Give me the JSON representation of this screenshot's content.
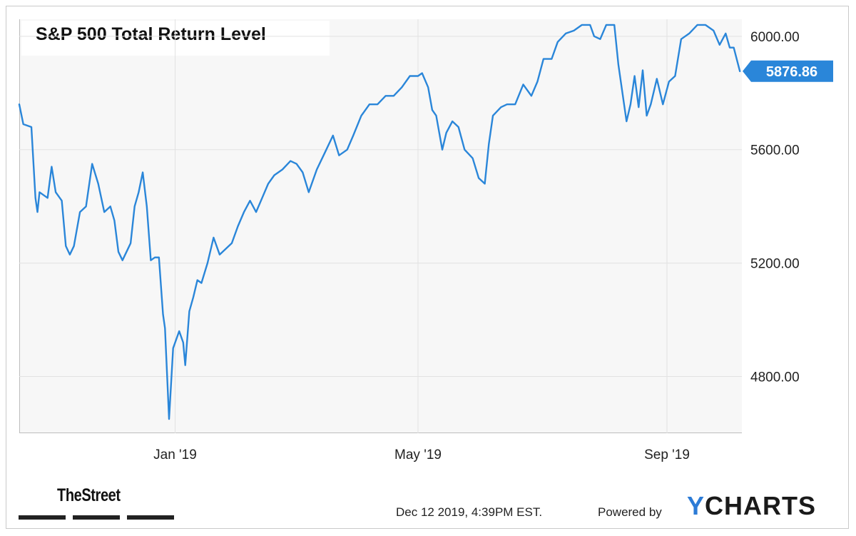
{
  "chart_data": {
    "type": "line",
    "title": "S&P 500 Total Return Level",
    "xlabel": "",
    "ylabel": "",
    "x_range": [
      "2018-10-16",
      "2019-10-08"
    ],
    "x_ticks": [
      {
        "date": "2019-01-01",
        "label": "Jan '19"
      },
      {
        "date": "2019-05-01",
        "label": "May '19"
      },
      {
        "date": "2019-09-01",
        "label": "Sep '19"
      }
    ],
    "ylim": [
      4600,
      6060
    ],
    "y_ticks": [
      {
        "value": 4800,
        "label": "4800.00"
      },
      {
        "value": 5200,
        "label": "5200.00"
      },
      {
        "value": 5600,
        "label": "5600.00"
      },
      {
        "value": 6000,
        "label": "6000.00"
      }
    ],
    "grid": true,
    "current_value": {
      "value": 5876.86,
      "label": "5876.86",
      "color": "#2a86d9"
    },
    "series": [
      {
        "color": "#2a86d9",
        "points": [
          [
            "2018-10-16",
            5760
          ],
          [
            "2018-10-18",
            5690
          ],
          [
            "2018-10-22",
            5680
          ],
          [
            "2018-10-24",
            5430
          ],
          [
            "2018-10-25",
            5380
          ],
          [
            "2018-10-26",
            5450
          ],
          [
            "2018-10-30",
            5430
          ],
          [
            "2018-11-01",
            5540
          ],
          [
            "2018-11-03",
            5450
          ],
          [
            "2018-11-06",
            5420
          ],
          [
            "2018-11-08",
            5260
          ],
          [
            "2018-11-10",
            5230
          ],
          [
            "2018-11-12",
            5260
          ],
          [
            "2018-11-15",
            5380
          ],
          [
            "2018-11-18",
            5400
          ],
          [
            "2018-11-21",
            5550
          ],
          [
            "2018-11-24",
            5480
          ],
          [
            "2018-11-27",
            5380
          ],
          [
            "2018-11-30",
            5400
          ],
          [
            "2018-12-02",
            5350
          ],
          [
            "2018-12-04",
            5240
          ],
          [
            "2018-12-06",
            5210
          ],
          [
            "2018-12-10",
            5270
          ],
          [
            "2018-12-12",
            5400
          ],
          [
            "2018-12-14",
            5450
          ],
          [
            "2018-12-16",
            5520
          ],
          [
            "2018-12-18",
            5400
          ],
          [
            "2018-12-20",
            5210
          ],
          [
            "2018-12-22",
            5220
          ],
          [
            "2018-12-24",
            5220
          ],
          [
            "2018-12-26",
            5020
          ],
          [
            "2018-12-27",
            4970
          ],
          [
            "2018-12-29",
            4650
          ],
          [
            "2018-12-31",
            4900
          ],
          [
            "2019-01-03",
            4960
          ],
          [
            "2019-01-05",
            4920
          ],
          [
            "2019-01-06",
            4840
          ],
          [
            "2019-01-08",
            5030
          ],
          [
            "2019-01-10",
            5080
          ],
          [
            "2019-01-12",
            5140
          ],
          [
            "2019-01-14",
            5130
          ],
          [
            "2019-01-17",
            5200
          ],
          [
            "2019-01-20",
            5290
          ],
          [
            "2019-01-23",
            5230
          ],
          [
            "2019-01-26",
            5250
          ],
          [
            "2019-01-29",
            5270
          ],
          [
            "2019-02-01",
            5330
          ],
          [
            "2019-02-04",
            5380
          ],
          [
            "2019-02-07",
            5420
          ],
          [
            "2019-02-10",
            5380
          ],
          [
            "2019-02-13",
            5430
          ],
          [
            "2019-02-16",
            5480
          ],
          [
            "2019-02-19",
            5510
          ],
          [
            "2019-02-23",
            5530
          ],
          [
            "2019-02-27",
            5560
          ],
          [
            "2019-03-02",
            5550
          ],
          [
            "2019-03-05",
            5520
          ],
          [
            "2019-03-08",
            5450
          ],
          [
            "2019-03-12",
            5530
          ],
          [
            "2019-03-16",
            5590
          ],
          [
            "2019-03-20",
            5650
          ],
          [
            "2019-03-23",
            5580
          ],
          [
            "2019-03-27",
            5600
          ],
          [
            "2019-03-30",
            5650
          ],
          [
            "2019-04-03",
            5720
          ],
          [
            "2019-04-07",
            5760
          ],
          [
            "2019-04-11",
            5760
          ],
          [
            "2019-04-15",
            5790
          ],
          [
            "2019-04-19",
            5790
          ],
          [
            "2019-04-23",
            5820
          ],
          [
            "2019-04-27",
            5860
          ],
          [
            "2019-05-01",
            5860
          ],
          [
            "2019-05-03",
            5870
          ],
          [
            "2019-05-06",
            5820
          ],
          [
            "2019-05-08",
            5740
          ],
          [
            "2019-05-10",
            5720
          ],
          [
            "2019-05-13",
            5600
          ],
          [
            "2019-05-15",
            5660
          ],
          [
            "2019-05-18",
            5700
          ],
          [
            "2019-05-21",
            5680
          ],
          [
            "2019-05-24",
            5600
          ],
          [
            "2019-05-28",
            5570
          ],
          [
            "2019-05-31",
            5500
          ],
          [
            "2019-06-03",
            5480
          ],
          [
            "2019-06-05",
            5620
          ],
          [
            "2019-06-07",
            5720
          ],
          [
            "2019-06-11",
            5750
          ],
          [
            "2019-06-14",
            5760
          ],
          [
            "2019-06-18",
            5760
          ],
          [
            "2019-06-22",
            5830
          ],
          [
            "2019-06-26",
            5790
          ],
          [
            "2019-06-29",
            5840
          ],
          [
            "2019-07-02",
            5920
          ],
          [
            "2019-07-06",
            5920
          ],
          [
            "2019-07-09",
            5980
          ],
          [
            "2019-07-13",
            6010
          ],
          [
            "2019-07-17",
            6020
          ],
          [
            "2019-07-21",
            6040
          ],
          [
            "2019-07-25",
            6040
          ],
          [
            "2019-07-27",
            6000
          ],
          [
            "2019-07-30",
            5990
          ],
          [
            "2019-08-02",
            6040
          ],
          [
            "2019-08-06",
            6040
          ],
          [
            "2019-08-08",
            5900
          ],
          [
            "2019-08-10",
            5800
          ],
          [
            "2019-08-12",
            5700
          ],
          [
            "2019-08-14",
            5760
          ],
          [
            "2019-08-16",
            5860
          ],
          [
            "2019-08-18",
            5750
          ],
          [
            "2019-08-20",
            5880
          ],
          [
            "2019-08-22",
            5720
          ],
          [
            "2019-08-24",
            5760
          ],
          [
            "2019-08-27",
            5850
          ],
          [
            "2019-08-30",
            5760
          ],
          [
            "2019-09-02",
            5840
          ],
          [
            "2019-09-05",
            5860
          ],
          [
            "2019-09-08",
            5990
          ],
          [
            "2019-09-12",
            6010
          ],
          [
            "2019-09-16",
            6040
          ],
          [
            "2019-09-20",
            6040
          ],
          [
            "2019-09-24",
            6020
          ],
          [
            "2019-09-27",
            5970
          ],
          [
            "2019-09-30",
            6010
          ],
          [
            "2019-10-02",
            5960
          ],
          [
            "2019-10-04",
            5960
          ],
          [
            "2019-10-07",
            5876.86
          ]
        ]
      }
    ]
  },
  "footer": {
    "brand_left": "TheStreet",
    "timestamp": "Dec 12 2019, 4:39PM EST.",
    "powered_by": "Powered by",
    "brand_right_initial": "Y",
    "brand_right_rest": "CHARTS"
  }
}
